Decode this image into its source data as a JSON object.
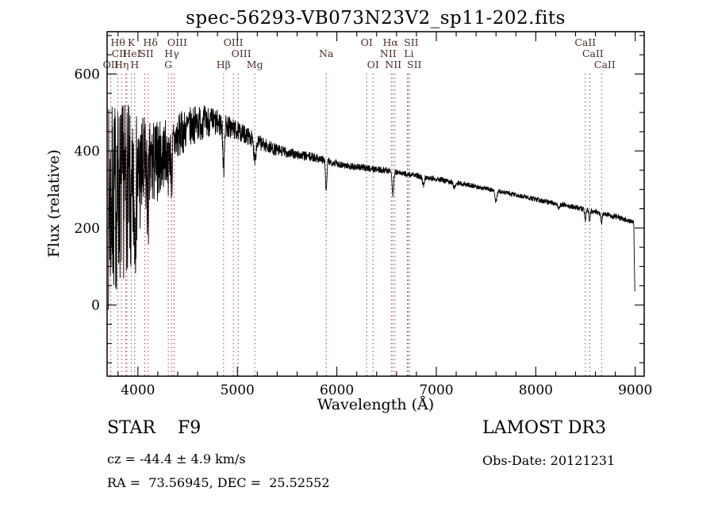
{
  "title": "spec-56293-VB073N23V2_sp11-202.fits",
  "annotations": {
    "class_label": "STAR    F9",
    "survey": "LAMOST DR3",
    "cz": "cz = -44.4 ± 4.9 km/s",
    "obs_date": "Obs-Date: 20121231",
    "ra_dec": "RA =  73.56945, DEC =  25.52552"
  },
  "chart_data": {
    "type": "line",
    "title": "spec-56293-VB073N23V2_sp11-202.fits",
    "xlabel": "Wavelength (Å)",
    "ylabel": "Flux (relative)",
    "xlim": [
      3690,
      9090
    ],
    "ylim": [
      -185,
      710
    ],
    "x_major_ticks": [
      4000,
      5000,
      6000,
      7000,
      8000,
      9000
    ],
    "x_minor_step": 200,
    "y_major_ticks": [
      0,
      200,
      400,
      600
    ],
    "y_minor_step": 50,
    "grid": false,
    "legend": false,
    "line_color": "#000000",
    "marker_color": "#a1453b",
    "marker_label_color": "#4d2b25",
    "noise_seed": 7,
    "continuum": [
      [
        3700,
        250
      ],
      [
        3750,
        268
      ],
      [
        3800,
        285
      ],
      [
        3850,
        298
      ],
      [
        3900,
        308
      ],
      [
        3950,
        318
      ],
      [
        4000,
        330
      ],
      [
        4100,
        352
      ],
      [
        4200,
        376
      ],
      [
        4300,
        402
      ],
      [
        4400,
        436
      ],
      [
        4500,
        460
      ],
      [
        4600,
        472
      ],
      [
        4700,
        478
      ],
      [
        4800,
        472
      ],
      [
        4900,
        464
      ],
      [
        5000,
        452
      ],
      [
        5100,
        440
      ],
      [
        5200,
        425
      ],
      [
        5300,
        412
      ],
      [
        5400,
        402
      ],
      [
        5500,
        396
      ],
      [
        5600,
        390
      ],
      [
        5700,
        386
      ],
      [
        5800,
        382
      ],
      [
        5900,
        374
      ],
      [
        6000,
        368
      ],
      [
        6100,
        362
      ],
      [
        6200,
        358
      ],
      [
        6300,
        356
      ],
      [
        6400,
        352
      ],
      [
        6500,
        350
      ],
      [
        6600,
        344
      ],
      [
        6700,
        340
      ],
      [
        6800,
        336
      ],
      [
        6900,
        332
      ],
      [
        7000,
        328
      ],
      [
        7100,
        322
      ],
      [
        7200,
        318
      ],
      [
        7400,
        308
      ],
      [
        7600,
        297
      ],
      [
        7800,
        286
      ],
      [
        8000,
        274
      ],
      [
        8200,
        264
      ],
      [
        8400,
        254
      ],
      [
        8600,
        242
      ],
      [
        8800,
        230
      ],
      [
        8950,
        218
      ],
      [
        8985,
        214
      ],
      [
        8995,
        45
      ],
      [
        9002,
        38
      ]
    ],
    "noise_profile": [
      [
        3700,
        270
      ],
      [
        3750,
        260
      ],
      [
        3800,
        245
      ],
      [
        3850,
        235
      ],
      [
        3900,
        215
      ],
      [
        3950,
        195
      ],
      [
        4000,
        170
      ],
      [
        4100,
        135
      ],
      [
        4200,
        105
      ],
      [
        4300,
        80
      ],
      [
        4400,
        62
      ],
      [
        4500,
        52
      ],
      [
        4600,
        48
      ],
      [
        4700,
        42
      ],
      [
        4800,
        36
      ],
      [
        5000,
        26
      ],
      [
        5200,
        20
      ],
      [
        5400,
        16
      ],
      [
        5600,
        13
      ],
      [
        5800,
        12
      ],
      [
        6000,
        10
      ],
      [
        6300,
        9
      ],
      [
        6600,
        8
      ],
      [
        7000,
        7
      ],
      [
        7500,
        6
      ],
      [
        8000,
        6
      ],
      [
        8500,
        7
      ],
      [
        8800,
        8
      ],
      [
        9000,
        6
      ]
    ],
    "absorption_features": [
      {
        "center": 3934,
        "depth": 110,
        "sigma": 8
      },
      {
        "center": 3968,
        "depth": 100,
        "sigma": 8
      },
      {
        "center": 4102,
        "depth": 90,
        "sigma": 8
      },
      {
        "center": 4305,
        "depth": 45,
        "sigma": 8
      },
      {
        "center": 4340,
        "depth": 85,
        "sigma": 7
      },
      {
        "center": 4861,
        "depth": 115,
        "sigma": 7
      },
      {
        "center": 5175,
        "depth": 45,
        "sigma": 12
      },
      {
        "center": 5893,
        "depth": 80,
        "sigma": 7
      },
      {
        "center": 6563,
        "depth": 62,
        "sigma": 7
      },
      {
        "center": 6870,
        "depth": 22,
        "sigma": 9
      },
      {
        "center": 7180,
        "depth": 15,
        "sigma": 10
      },
      {
        "center": 7600,
        "depth": 28,
        "sigma": 10
      },
      {
        "center": 8230,
        "depth": 12,
        "sigma": 8
      },
      {
        "center": 8498,
        "depth": 26,
        "sigma": 6
      },
      {
        "center": 8542,
        "depth": 30,
        "sigma": 6
      },
      {
        "center": 8662,
        "depth": 26,
        "sigma": 6
      }
    ],
    "spectral_lines": [
      {
        "label": "OII",
        "wl": 3727,
        "row": 3
      },
      {
        "label": "Hθ",
        "wl": 3798,
        "row": 1
      },
      {
        "label": "Hη",
        "wl": 3835,
        "row": 3
      },
      {
        "label": "CII",
        "wl": 3876,
        "row": 2,
        "dx": -8
      },
      {
        "label": "HeI",
        "wl": 3889,
        "row": 2,
        "dx": 6
      },
      {
        "label": "K",
        "wl": 3934,
        "row": 1
      },
      {
        "label": "H",
        "wl": 3968,
        "row": 3
      },
      {
        "label": "SII",
        "wl": 4069,
        "row": 2,
        "dx": 2
      },
      {
        "label": "Hδ",
        "wl": 4102,
        "row": 1,
        "dx": 3
      },
      {
        "label": "G",
        "wl": 4305,
        "row": 3
      },
      {
        "label": "Hγ",
        "wl": 4340,
        "row": 2
      },
      {
        "label": "OIII",
        "wl": 4363,
        "row": 1,
        "dx": 4
      },
      {
        "label": "Hβ",
        "wl": 4861,
        "row": 3
      },
      {
        "label": "OIII",
        "wl": 4959,
        "row": 1
      },
      {
        "label": "OIII",
        "wl": 5007,
        "row": 2,
        "dx": 4
      },
      {
        "label": "Mg",
        "wl": 5175,
        "row": 3
      },
      {
        "label": "Na",
        "wl": 5893,
        "row": 2
      },
      {
        "label": "OI",
        "wl": 6300,
        "row": 1
      },
      {
        "label": "OI",
        "wl": 6364,
        "row": 3
      },
      {
        "label": "NII",
        "wl": 6548,
        "row": 2,
        "dx": -4
      },
      {
        "label": "Hα",
        "wl": 6563,
        "row": 1,
        "dx": -3
      },
      {
        "label": "NII",
        "wl": 6583,
        "row": 3,
        "dx": -2
      },
      {
        "label": "Li",
        "wl": 6708,
        "row": 2,
        "dx": 2
      },
      {
        "label": "SII",
        "wl": 6716,
        "row": 1,
        "dx": 4
      },
      {
        "label": "SII",
        "wl": 6731,
        "row": 3,
        "dx": 6
      },
      {
        "label": "CaII",
        "wl": 8498,
        "row": 1
      },
      {
        "label": "CaII",
        "wl": 8542,
        "row": 2,
        "dx": 4
      },
      {
        "label": "CaII",
        "wl": 8662,
        "row": 3,
        "dx": 4
      }
    ]
  }
}
